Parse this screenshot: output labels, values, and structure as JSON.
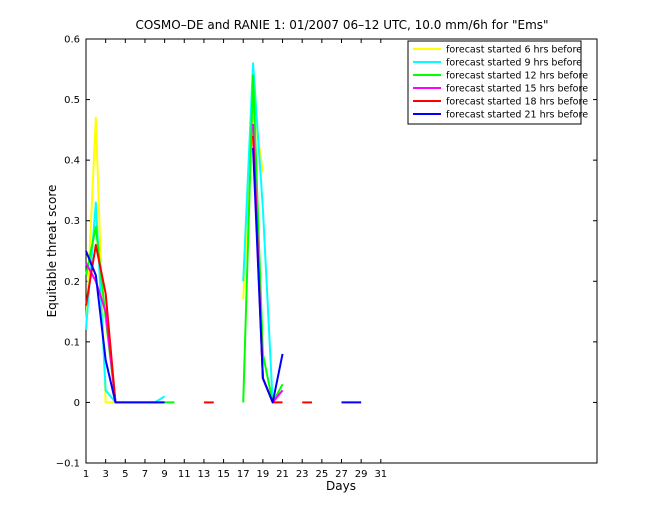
{
  "chart_data": {
    "type": "line",
    "title": "COSMO–DE and RANIE 1: 01/2007 06–12 UTC, 10.0 mm/6h for \"Ems\"",
    "xlabel": "Days",
    "ylabel": "Equitable threat score",
    "xlim": [
      1,
      53
    ],
    "ylim": [
      -0.1,
      0.6
    ],
    "xticks": [
      1,
      3,
      5,
      7,
      9,
      11,
      13,
      15,
      17,
      19,
      21,
      23,
      25,
      27,
      29,
      31
    ],
    "yticks": [
      -0.1,
      0,
      0.1,
      0.2,
      0.3,
      0.4,
      0.5,
      0.6
    ],
    "ytick_labels": [
      "−0.1",
      "0",
      "0.1",
      "0.2",
      "0.3",
      "0.4",
      "0.5",
      "0.6"
    ],
    "legend_position": "top-right",
    "series": [
      {
        "name": "forecast started 6 hrs before",
        "color": "#ffff00",
        "values": [
          [
            1,
            0.12
          ],
          [
            2,
            0.47
          ],
          [
            3,
            0
          ],
          [
            4,
            0
          ],
          [
            5,
            null
          ],
          [
            17,
            0.17
          ],
          [
            18,
            0.49
          ],
          [
            19,
            0.38
          ]
        ]
      },
      {
        "name": "forecast started 9 hrs before",
        "color": "#00ffff",
        "values": [
          [
            1,
            0.12
          ],
          [
            2,
            0.33
          ],
          [
            3,
            0.02
          ],
          [
            4,
            0
          ],
          [
            5,
            0
          ],
          [
            6,
            0
          ],
          [
            7,
            0
          ],
          [
            8,
            0
          ],
          [
            9,
            0.01
          ],
          [
            10,
            null
          ],
          [
            17,
            0.2
          ],
          [
            18,
            0.56
          ],
          [
            19,
            0.32
          ],
          [
            20,
            0
          ],
          [
            21,
            null
          ]
        ]
      },
      {
        "name": "forecast started 12 hrs before",
        "color": "#00ff00",
        "values": [
          [
            1,
            0.21
          ],
          [
            2,
            0.29
          ],
          [
            3,
            0.14
          ],
          [
            4,
            0
          ],
          [
            5,
            0
          ],
          [
            6,
            0
          ],
          [
            7,
            0
          ],
          [
            8,
            0
          ],
          [
            9,
            0
          ],
          [
            10,
            0
          ],
          [
            11,
            null
          ],
          [
            17,
            0
          ],
          [
            18,
            0.54
          ],
          [
            19,
            0.08
          ],
          [
            20,
            0
          ],
          [
            21,
            0.03
          ],
          [
            22,
            null
          ]
        ]
      },
      {
        "name": "forecast started 15 hrs before",
        "color": "#ff00ff",
        "values": [
          [
            1,
            0.23
          ],
          [
            2,
            0.2
          ],
          [
            3,
            0.15
          ],
          [
            4,
            0
          ],
          [
            5,
            null
          ],
          [
            18,
            0.46
          ],
          [
            19,
            0.04
          ],
          [
            20,
            0
          ],
          [
            21,
            0.02
          ]
        ]
      },
      {
        "name": "forecast started 18 hrs before",
        "color": "#ff0000",
        "values": [
          [
            1,
            0.16
          ],
          [
            2,
            0.26
          ],
          [
            3,
            0.18
          ],
          [
            4,
            0
          ],
          [
            5,
            null
          ],
          [
            13,
            0
          ],
          [
            14,
            0
          ],
          [
            15,
            null
          ],
          [
            18,
            0.44
          ],
          [
            19,
            0.04
          ],
          [
            20,
            0
          ],
          [
            21,
            0
          ],
          [
            22,
            null
          ],
          [
            23,
            0
          ],
          [
            24,
            0
          ],
          [
            25,
            null
          ]
        ]
      },
      {
        "name": "forecast started 21 hrs before",
        "color": "#0000ff",
        "values": [
          [
            1,
            0.25
          ],
          [
            2,
            0.21
          ],
          [
            3,
            0.07
          ],
          [
            4,
            0
          ],
          [
            5,
            0
          ],
          [
            6,
            0
          ],
          [
            7,
            0
          ],
          [
            8,
            0
          ],
          [
            9,
            0
          ],
          [
            10,
            null
          ],
          [
            18,
            0.42
          ],
          [
            19,
            0.04
          ],
          [
            20,
            0
          ],
          [
            21,
            0.08
          ],
          [
            22,
            null
          ],
          [
            27,
            0
          ],
          [
            28,
            0
          ],
          [
            29,
            0
          ]
        ]
      }
    ]
  }
}
